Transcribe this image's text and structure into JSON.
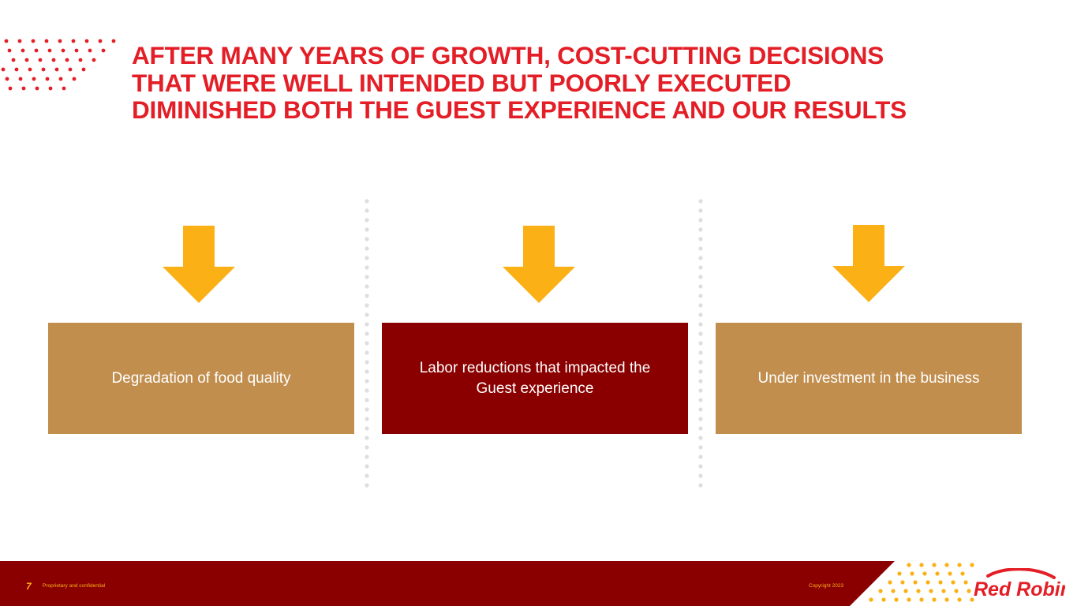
{
  "slide": {
    "title_lines": [
      "AFTER MANY YEARS OF GROWTH, COST-CUTTING DECISIONS",
      "THAT WERE WELL INTENDED BUT POORLY EXECUTED",
      "DIMINISHED BOTH THE GUEST EXPERIENCE AND OUR RESULTS"
    ],
    "boxes": [
      {
        "text": "Degradation of food quality"
      },
      {
        "text": "Labor reductions that impacted the Guest experience"
      },
      {
        "text": "Under investment in the business"
      }
    ]
  },
  "footer": {
    "page_number": "7",
    "confidential": "Proprietary and confidential",
    "copyright": "Copyright 2023"
  },
  "brand": {
    "logo_text": "Red Robin",
    "accent_red": "#e31e26",
    "dark_red": "#8a0000",
    "tan": "#c18e4e",
    "gold": "#fbb116"
  },
  "icons": {
    "arrow": "down-arrow-icon"
  }
}
